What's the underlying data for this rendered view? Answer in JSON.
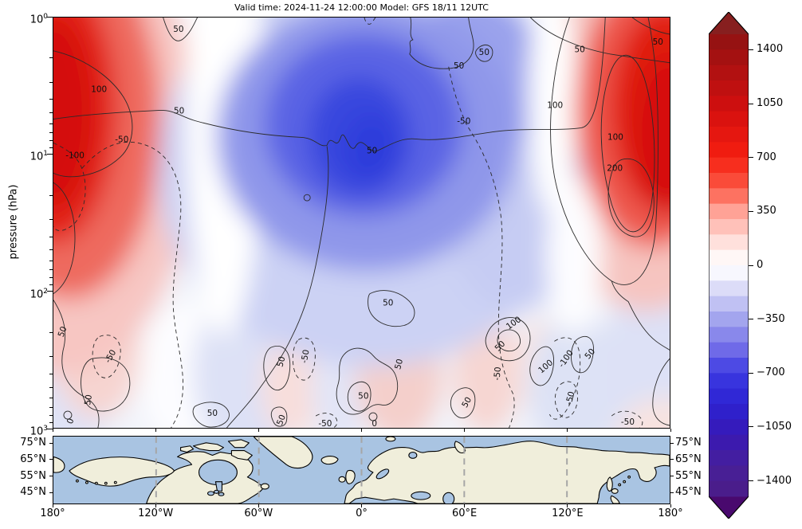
{
  "title": "Valid time: 2024-11-24 12:00:00 Model: GFS 18/11 12UTC",
  "main": {
    "ylabel": "pressure (hPa)",
    "y_ticks": [
      {
        "m": "10",
        "e": "0"
      },
      {
        "m": "10",
        "e": "1"
      },
      {
        "m": "10",
        "e": "2"
      },
      {
        "m": "10",
        "e": "3"
      }
    ]
  },
  "colorbar": {
    "tick_labels": [
      "1400",
      "1050",
      "700",
      "350",
      "0",
      "−350",
      "−700",
      "−1050",
      "−1400"
    ],
    "tick_values": [
      1400,
      1050,
      700,
      350,
      0,
      -350,
      -700,
      -1050,
      -1400
    ],
    "range": [
      -1500,
      1500
    ],
    "band_step": 100,
    "over_color": "#871f1f",
    "under_color": "#49096e",
    "stops": [
      [
        1500,
        "#8f1212"
      ],
      [
        1000,
        "#d40f0f"
      ],
      [
        700,
        "#f51f10"
      ],
      [
        500,
        "#fc5a47"
      ],
      [
        350,
        "#ffa296"
      ],
      [
        150,
        "#ffe0dc"
      ],
      [
        50,
        "#fff7f6"
      ],
      [
        0,
        "#ffffff"
      ],
      [
        -50,
        "#f7f7fe"
      ],
      [
        -150,
        "#dcdcf8"
      ],
      [
        -350,
        "#a3a5ee"
      ],
      [
        -550,
        "#6f6ae8"
      ],
      [
        -700,
        "#3c3ae2"
      ],
      [
        -900,
        "#2c22d2"
      ],
      [
        -1100,
        "#3818b4"
      ],
      [
        -1300,
        "#47209a"
      ],
      [
        -1500,
        "#4b1c86"
      ]
    ]
  },
  "map": {
    "land_color": "#f0eedb",
    "ocean_color": "#a9c4e2",
    "coast_color": "#000000",
    "gridline_color": "#a6a6a6",
    "lat_tick_labels": [
      "75°N",
      "65°N",
      "55°N",
      "45°N"
    ],
    "lat_tick_degs": [
      75,
      65,
      55,
      45
    ],
    "lon_tick_labels": [
      "180°",
      "120°W",
      "60°W",
      "0°",
      "60°E",
      "120°E",
      "180°"
    ],
    "meridian_lons": [
      -120,
      -60,
      0,
      60,
      120
    ]
  },
  "chart_data": {
    "type": "contour",
    "title": "Valid time: 2024-11-24 12:00:00 Model: GFS 18/11 12UTC",
    "ylabel": "pressure (hPa)",
    "y_axis": {
      "scale": "log",
      "unit": "hPa",
      "ticks": [
        1,
        10,
        100,
        1000
      ],
      "range": [
        1,
        1000
      ]
    },
    "x_axis": {
      "unit": "longitude",
      "range": [
        -180,
        180
      ],
      "tick_labels": [
        "180°",
        "120°W",
        "60°W",
        "0°",
        "60°E",
        "120°E",
        "180°"
      ]
    },
    "fill": {
      "levels_step": 100,
      "levels_range": [
        -1400,
        1400
      ],
      "summary": [
        {
          "region": "upper-left stratosphere (~180W-130W, 1-30 hPa)",
          "sign": "positive",
          "approx_extreme": 900
        },
        {
          "region": "upper-center stratosphere (~60W-40E, 1-60 hPa)",
          "sign": "negative",
          "approx_extreme": -800
        },
        {
          "region": "upper-right stratosphere (~110E-180E, 1-30 hPa)",
          "sign": "positive",
          "approx_extreme": 900
        },
        {
          "region": "lower levels (100-1000 hPa)",
          "sign": "mixed weak",
          "approx_extreme": 200
        }
      ]
    },
    "line_contours": {
      "levels": [
        -100,
        -50,
        0,
        50,
        100,
        200
      ],
      "negative_style": "dashed",
      "positive_style": "solid"
    },
    "contour_labels": [
      {
        "text": "50",
        "fx": 0.203,
        "fy": 0.029,
        "rot": 0,
        "dashed": false
      },
      {
        "text": "100",
        "fx": 0.074,
        "fy": 0.176,
        "rot": 0,
        "dashed": false
      },
      {
        "text": "50",
        "fx": 0.204,
        "fy": 0.228,
        "rot": 0,
        "dashed": false
      },
      {
        "text": "-50",
        "fx": 0.111,
        "fy": 0.298,
        "rot": 0,
        "dashed": true
      },
      {
        "text": "-100",
        "fx": 0.035,
        "fy": 0.337,
        "rot": 0,
        "dashed": true
      },
      {
        "text": "50",
        "fx": 0.517,
        "fy": 0.325,
        "rot": 0,
        "dashed": false
      },
      {
        "text": "-50",
        "fx": 0.666,
        "fy": 0.253,
        "rot": 0,
        "dashed": true
      },
      {
        "text": "50",
        "fx": 0.658,
        "fy": 0.118,
        "rot": 0,
        "dashed": false
      },
      {
        "text": "50",
        "fx": 0.699,
        "fy": 0.085,
        "rot": 0,
        "dashed": false
      },
      {
        "text": "50",
        "fx": 0.854,
        "fy": 0.079,
        "rot": 0,
        "dashed": false
      },
      {
        "text": "50",
        "fx": 0.981,
        "fy": 0.06,
        "rot": 0,
        "dashed": false
      },
      {
        "text": "100",
        "fx": 0.814,
        "fy": 0.215,
        "rot": 0,
        "dashed": false
      },
      {
        "text": "100",
        "fx": 0.912,
        "fy": 0.292,
        "rot": 0,
        "dashed": false
      },
      {
        "text": "200",
        "fx": 0.911,
        "fy": 0.368,
        "rot": 0,
        "dashed": false
      },
      {
        "text": "50",
        "fx": 0.015,
        "fy": 0.766,
        "rot": -70,
        "dashed": false
      },
      {
        "text": "-50",
        "fx": 0.093,
        "fy": 0.826,
        "rot": -60,
        "dashed": true
      },
      {
        "text": "50",
        "fx": 0.057,
        "fy": 0.932,
        "rot": -80,
        "dashed": false
      },
      {
        "text": "0",
        "fx": 0.028,
        "fy": 0.984,
        "rot": -70,
        "dashed": false
      },
      {
        "text": "50",
        "fx": 0.37,
        "fy": 0.839,
        "rot": -75,
        "dashed": false
      },
      {
        "text": "-50",
        "fx": 0.409,
        "fy": 0.826,
        "rot": -80,
        "dashed": true
      },
      {
        "text": "50",
        "fx": 0.543,
        "fy": 0.696,
        "rot": 0,
        "dashed": false
      },
      {
        "text": "100",
        "fx": 0.747,
        "fy": 0.745,
        "rot": -35,
        "dashed": false
      },
      {
        "text": "50",
        "fx": 0.725,
        "fy": 0.801,
        "rot": -45,
        "dashed": false
      },
      {
        "text": "-50",
        "fx": 0.721,
        "fy": 0.868,
        "rot": -85,
        "dashed": true
      },
      {
        "text": "50",
        "fx": 0.561,
        "fy": 0.845,
        "rot": -75,
        "dashed": false
      },
      {
        "text": "50",
        "fx": 0.503,
        "fy": 0.923,
        "rot": 0,
        "dashed": false
      },
      {
        "text": "50",
        "fx": 0.671,
        "fy": 0.938,
        "rot": -60,
        "dashed": false
      },
      {
        "text": "100",
        "fx": 0.799,
        "fy": 0.851,
        "rot": -40,
        "dashed": false
      },
      {
        "text": "-100",
        "fx": 0.832,
        "fy": 0.832,
        "rot": -55,
        "dashed": true
      },
      {
        "text": "-50",
        "fx": 0.839,
        "fy": 0.928,
        "rot": -75,
        "dashed": true
      },
      {
        "text": "50",
        "fx": 0.871,
        "fy": 0.82,
        "rot": -50,
        "dashed": false
      },
      {
        "text": "-50",
        "fx": 0.932,
        "fy": 0.986,
        "rot": 0,
        "dashed": true
      },
      {
        "text": "50",
        "fx": 0.258,
        "fy": 0.965,
        "rot": 0,
        "dashed": false
      },
      {
        "text": "50",
        "fx": 0.37,
        "fy": 0.981,
        "rot": -70,
        "dashed": false
      },
      {
        "text": "-50",
        "fx": 0.441,
        "fy": 0.99,
        "rot": 0,
        "dashed": true
      },
      {
        "text": "0",
        "fx": 0.521,
        "fy": 0.99,
        "rot": 0,
        "dashed": false
      }
    ],
    "colorbar_ticks": [
      1400,
      1050,
      700,
      350,
      0,
      -350,
      -700,
      -1050,
      -1400
    ],
    "map_inset": {
      "lat_ticks": [
        "75°N",
        "65°N",
        "55°N",
        "45°N"
      ],
      "lon_ticks": [
        "180°",
        "120°W",
        "60°W",
        "0°",
        "60°E",
        "120°E",
        "180°"
      ],
      "lat_range_approx": [
        38,
        79.4
      ]
    }
  }
}
